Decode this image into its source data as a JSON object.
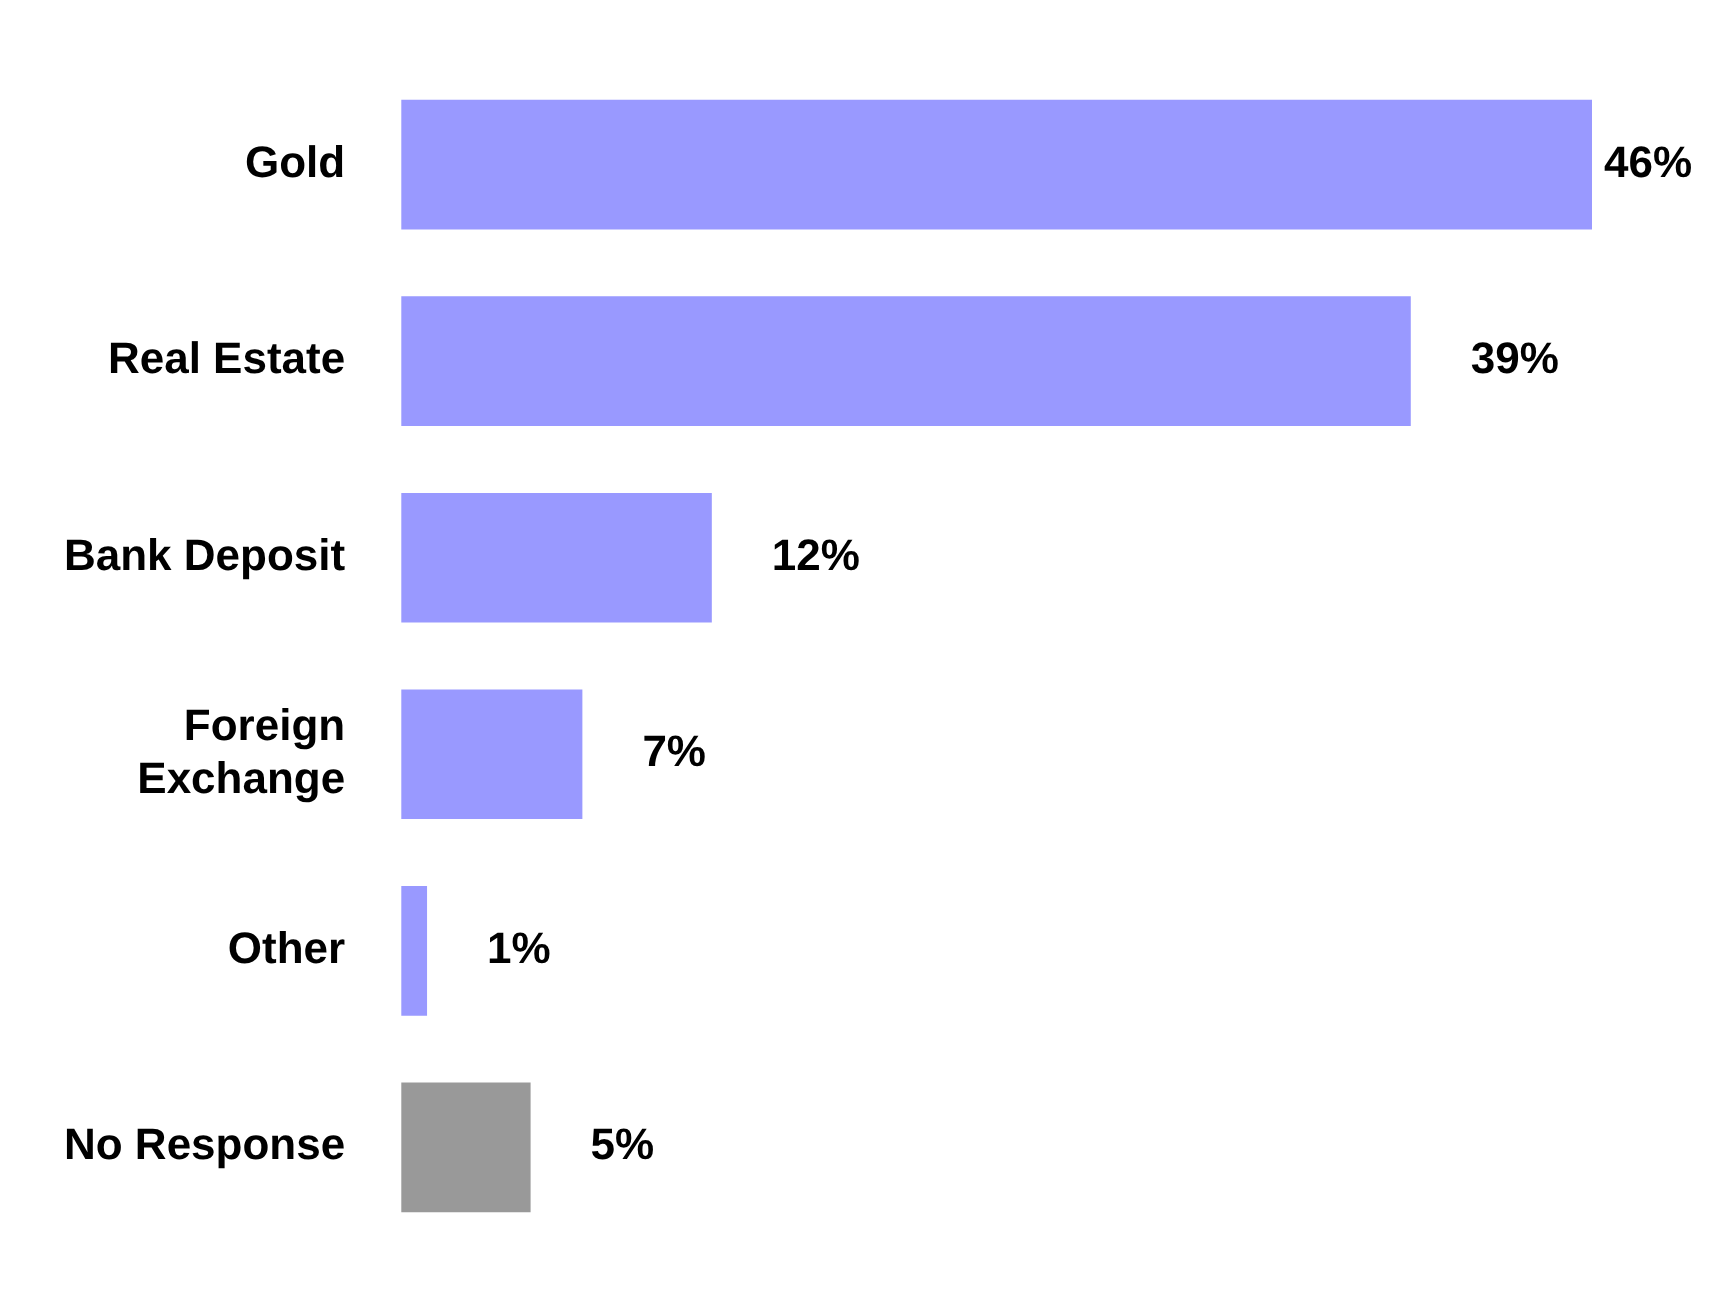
{
  "chart_data": {
    "type": "bar",
    "orientation": "horizontal",
    "categories": [
      "Gold",
      "Real Estate",
      "Bank Deposit",
      "Foreign Exchange",
      "Other",
      "No Response"
    ],
    "values": [
      46,
      39,
      12,
      7,
      1,
      5
    ],
    "colors": [
      "#9999ff",
      "#9999ff",
      "#9999ff",
      "#9999ff",
      "#9999ff",
      "#999999"
    ],
    "value_labels": [
      "46%",
      "39%",
      "12%",
      "7%",
      "1%",
      "5%"
    ],
    "legend": false,
    "tick_labels": "y"
  }
}
